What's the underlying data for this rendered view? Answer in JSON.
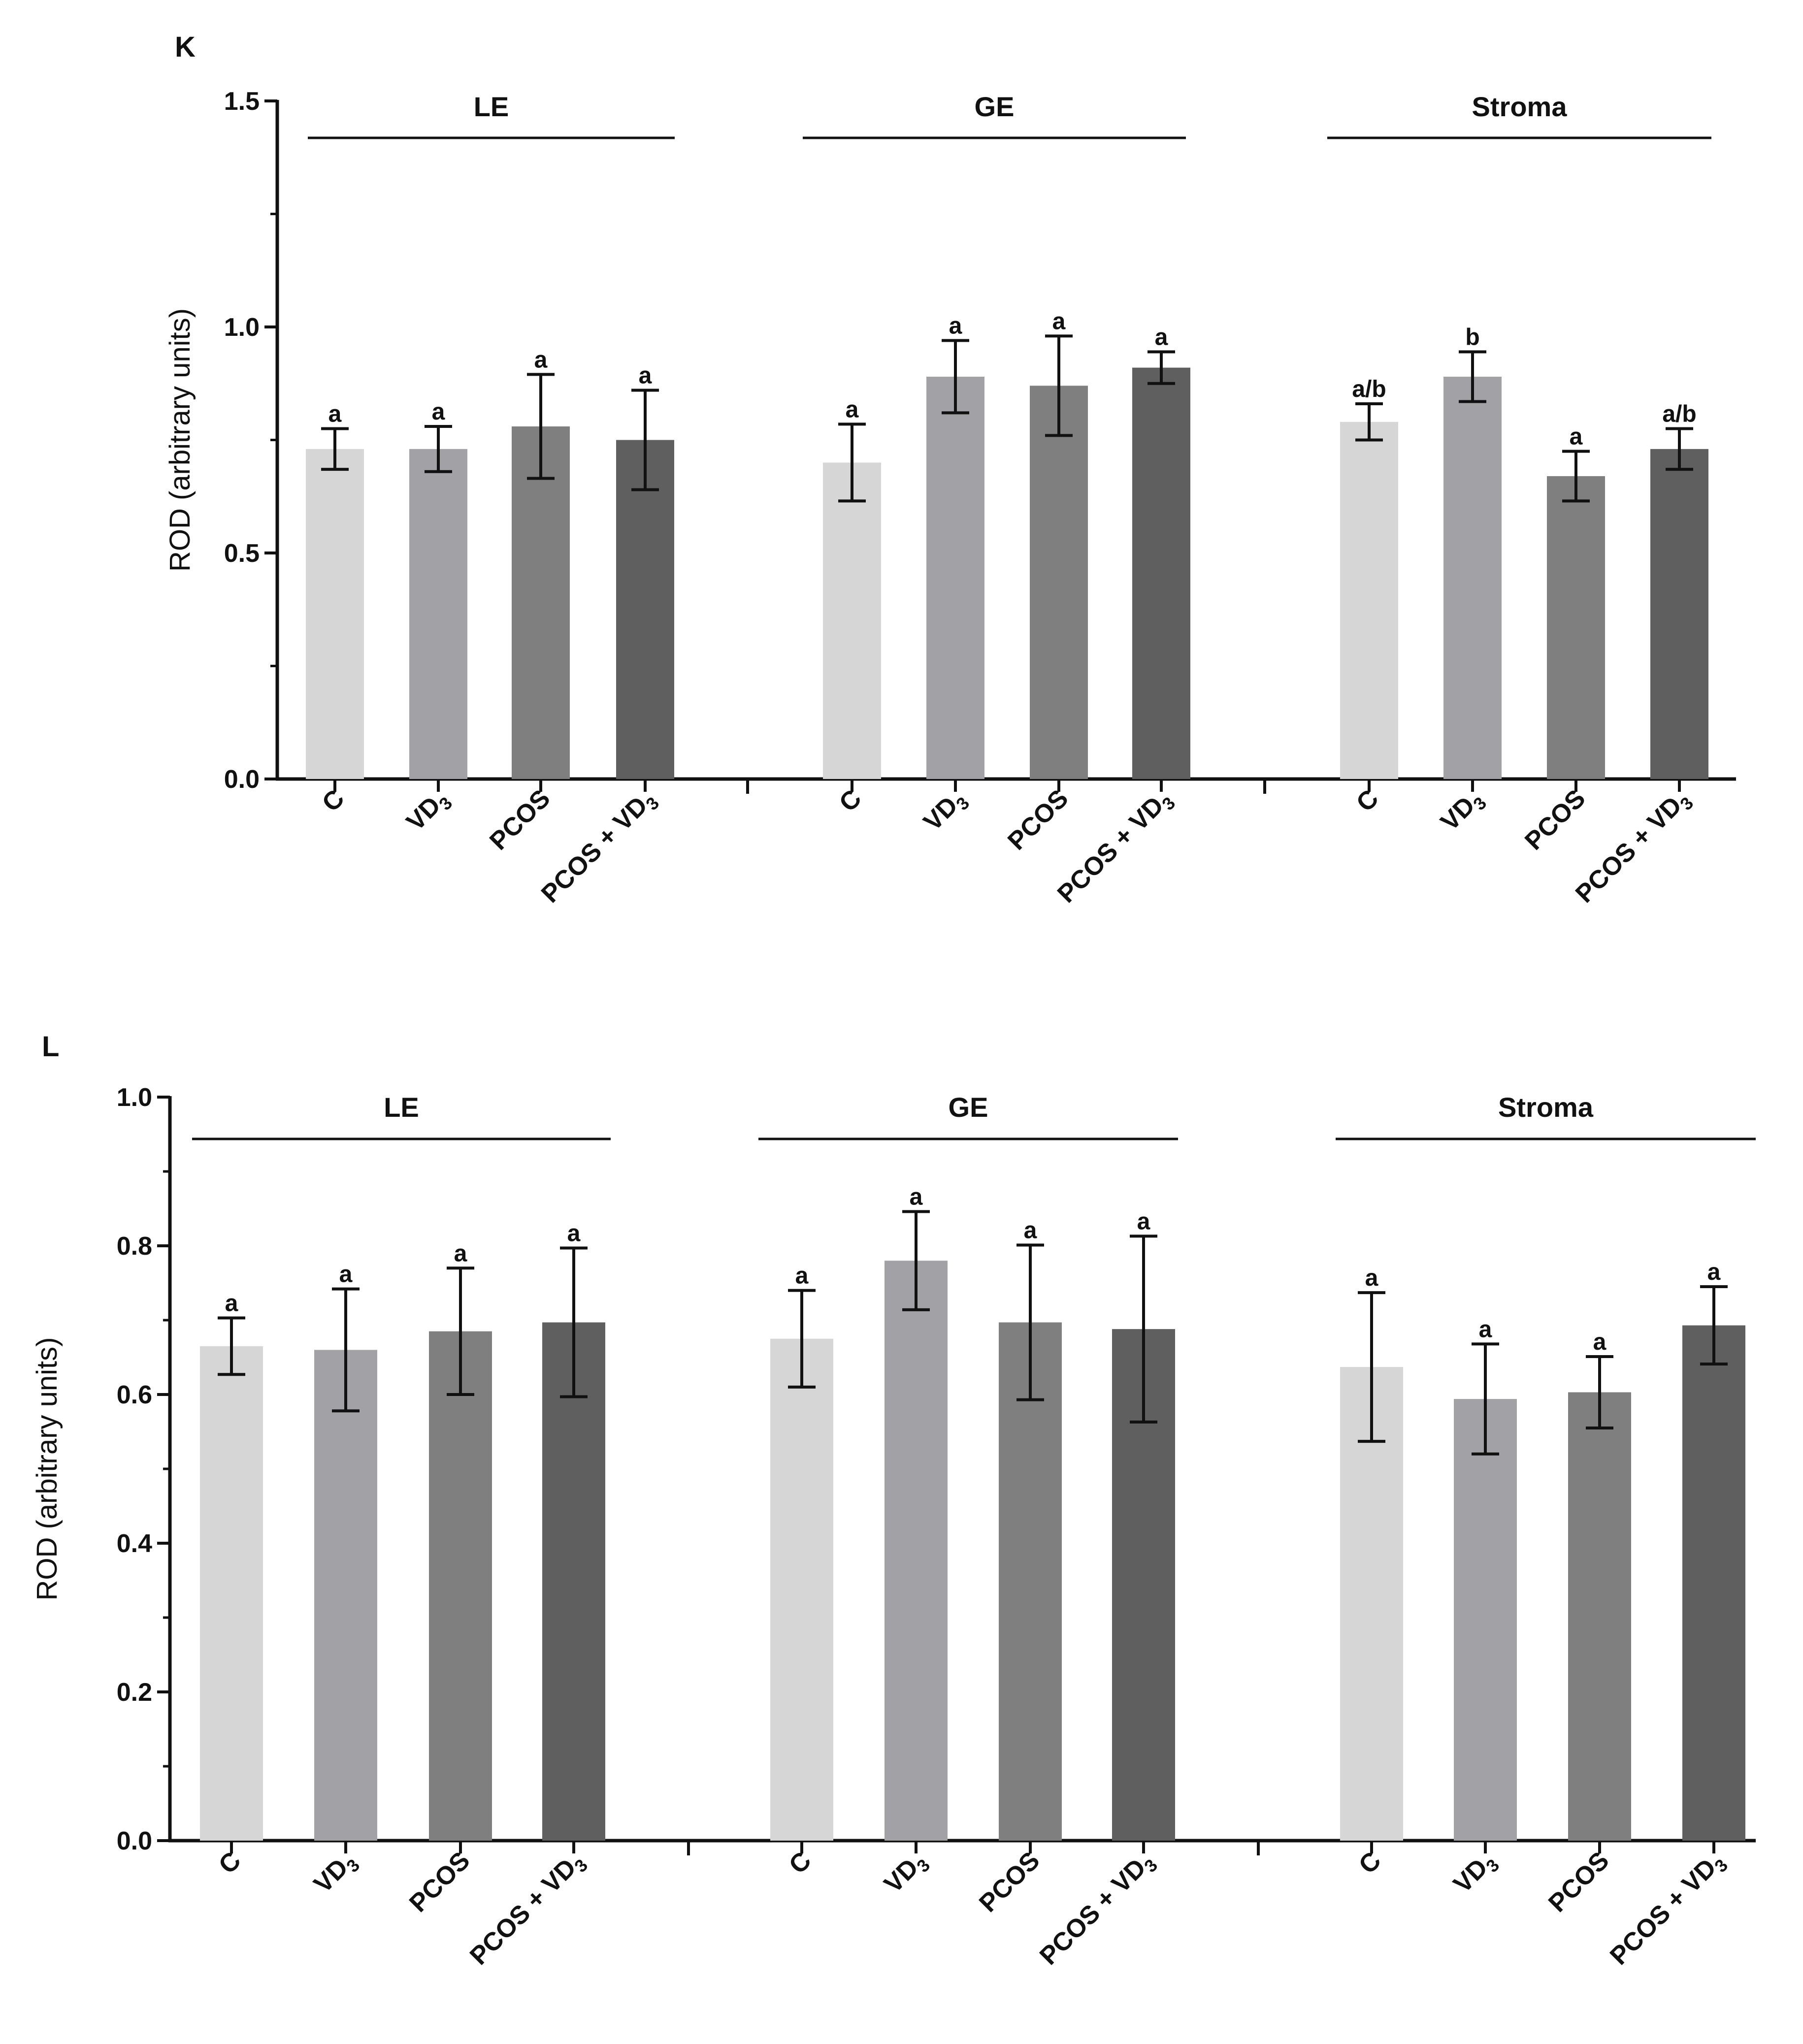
{
  "chart_data": [
    {
      "type": "bar",
      "panel": "K",
      "ylabel": "ROD (arbitrary units)",
      "ylim": [
        0,
        1.5
      ],
      "yticks": [
        "0.0",
        "0.5",
        "1.0",
        "1.5"
      ],
      "groups": [
        "LE",
        "GE",
        "Stroma"
      ],
      "categories": [
        "C",
        "VD3",
        "PCOS",
        "PCOS + VD3"
      ],
      "colors": [
        "#d6d6d6",
        "#a2a2a6",
        "#7f7f7f",
        "#5f5f5f"
      ],
      "series": [
        {
          "name": "LE",
          "values": [
            0.73,
            0.73,
            0.78,
            0.75
          ],
          "errors": [
            0.045,
            0.05,
            0.115,
            0.11
          ],
          "significance": [
            "a",
            "a",
            "a",
            "a"
          ]
        },
        {
          "name": "GE",
          "values": [
            0.7,
            0.89,
            0.87,
            0.91
          ],
          "errors": [
            0.085,
            0.08,
            0.11,
            0.035
          ],
          "significance": [
            "a",
            "a",
            "a",
            "a"
          ]
        },
        {
          "name": "Stroma",
          "values": [
            0.79,
            0.89,
            0.67,
            0.73
          ],
          "errors": [
            0.04,
            0.055,
            0.055,
            0.045
          ],
          "significance": [
            "a/b",
            "b",
            "a",
            "a/b"
          ]
        }
      ]
    },
    {
      "type": "bar",
      "panel": "L",
      "ylabel": "ROD (arbitrary units)",
      "ylim": [
        0,
        1.0
      ],
      "yticks": [
        "0.0",
        "0.2",
        "0.4",
        "0.6",
        "0.8",
        "1.0"
      ],
      "groups": [
        "LE",
        "GE",
        "Stroma"
      ],
      "categories": [
        "C",
        "VD3",
        "PCOS",
        "PCOS + VD3"
      ],
      "colors": [
        "#d6d6d6",
        "#a2a2a6",
        "#7f7f7f",
        "#5f5f5f"
      ],
      "series": [
        {
          "name": "LE",
          "values": [
            0.665,
            0.66,
            0.685,
            0.697
          ],
          "errors": [
            0.038,
            0.082,
            0.085,
            0.1
          ],
          "significance": [
            "a",
            "a",
            "a",
            "a"
          ]
        },
        {
          "name": "GE",
          "values": [
            0.675,
            0.78,
            0.697,
            0.688
          ],
          "errors": [
            0.065,
            0.066,
            0.104,
            0.125
          ],
          "significance": [
            "a",
            "a",
            "a",
            "a"
          ]
        },
        {
          "name": "Stroma",
          "values": [
            0.637,
            0.594,
            0.603,
            0.693
          ],
          "errors": [
            0.1,
            0.074,
            0.048,
            0.052
          ],
          "significance": [
            "a",
            "a",
            "a",
            "a"
          ]
        }
      ]
    }
  ]
}
